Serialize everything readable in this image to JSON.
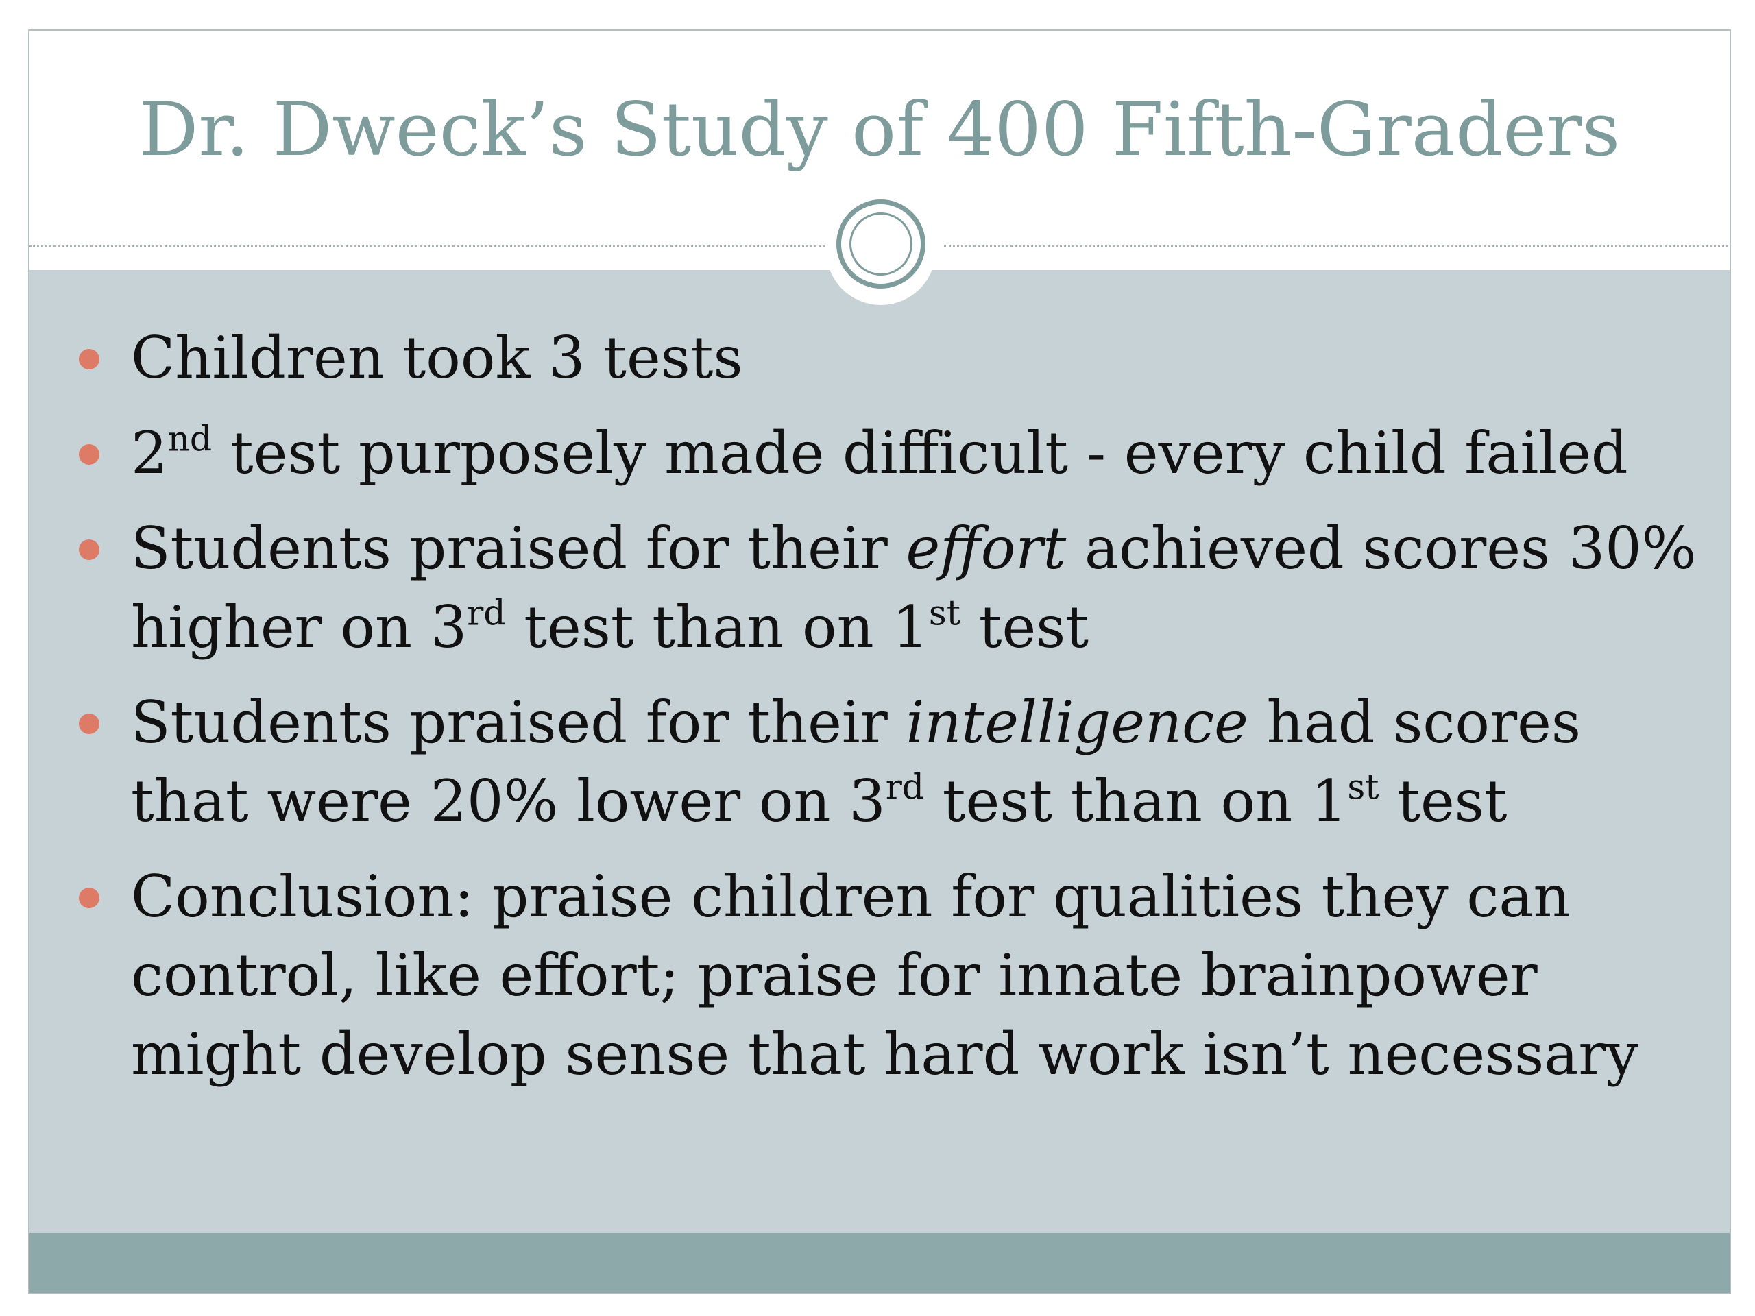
{
  "title": "Dr. Dweck’s Study of 400 Fifth-Graders",
  "bullets": [
    {
      "text": "Children took 3 tests"
    },
    {
      "a": "2",
      "a_sup": "nd",
      "b": " test purposely made difficult - every child failed"
    },
    {
      "a": "Students praised for their ",
      "em": "effort",
      "b": " achieved scores 30% higher on 3",
      "b_sup": "rd",
      "c": " test than on 1",
      "c_sup": "st",
      "d": " test"
    },
    {
      "a": "Students praised for their ",
      "em": "intelligence",
      "b": " had scores that were 20% lower on 3",
      "b_sup": "rd",
      "c": " test than on 1",
      "c_sup": "st",
      "d": " test"
    },
    {
      "text": "Conclusion: praise children for qualities they can control, like effort; praise for innate brainpower might develop sense that hard work isn’t necessary"
    }
  ],
  "colors": {
    "title": "#7f9c9c",
    "body_panel": "#c7d2d6",
    "footer_band": "#8ea9aa",
    "bullet_dot": "#dd7b66",
    "ring": "#7f9c9c"
  },
  "icons": {
    "divider_ornament": "double-ring-icon",
    "bullet": "dot-icon"
  }
}
